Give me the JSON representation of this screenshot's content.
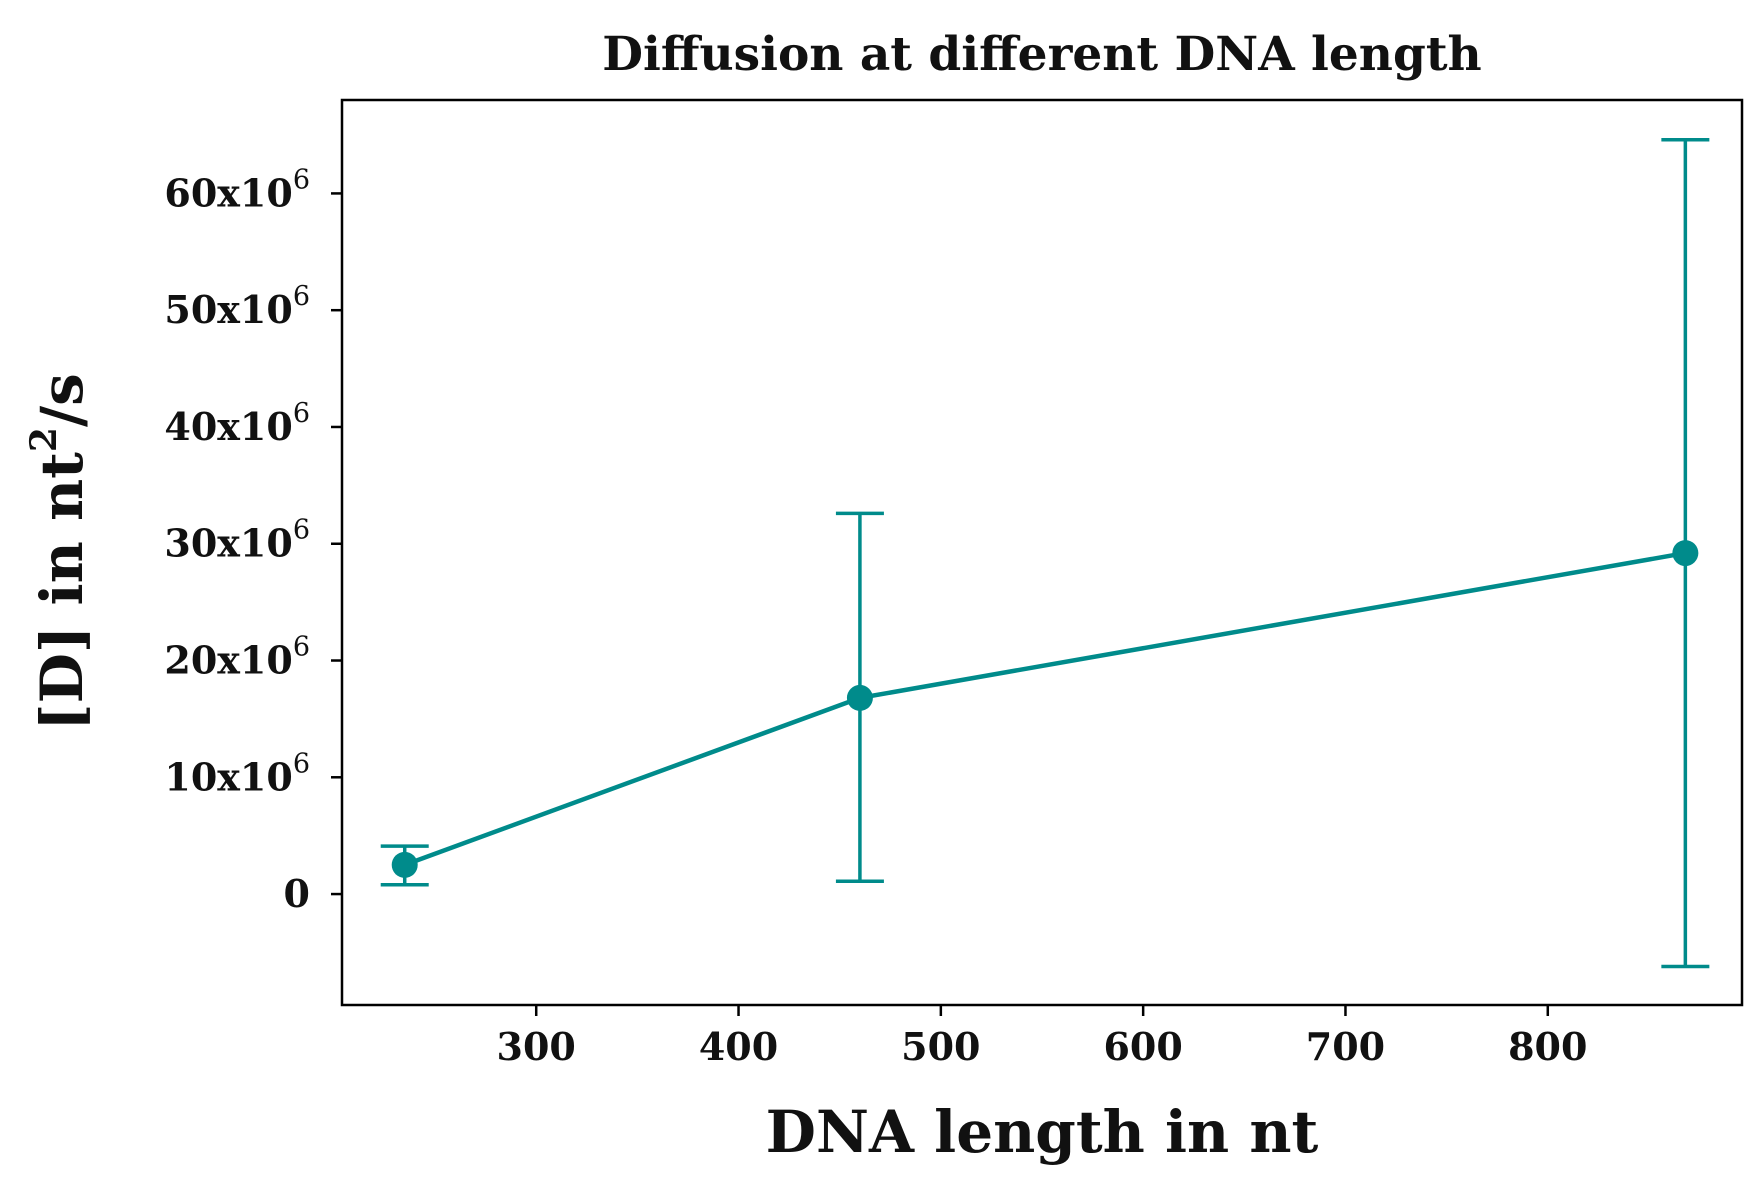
{
  "chart_data": {
    "type": "line",
    "title": "Diffusion at different DNA length",
    "xlabel": "DNA length in nt",
    "ylabel": "[D] in nt²/s",
    "ylabel_parts": {
      "main": "[D] in nt",
      "sup": "2",
      "tail": "/s"
    },
    "x_ticks": [
      300,
      400,
      500,
      600,
      700,
      800
    ],
    "y_ticks": [
      {
        "value": 0,
        "mantissa": "0",
        "exp": ""
      },
      {
        "value": 10000000,
        "mantissa": "10x10",
        "exp": "6"
      },
      {
        "value": 20000000,
        "mantissa": "20x10",
        "exp": "6"
      },
      {
        "value": 30000000,
        "mantissa": "30x10",
        "exp": "6"
      },
      {
        "value": 40000000,
        "mantissa": "40x10",
        "exp": "6"
      },
      {
        "value": 50000000,
        "mantissa": "50x10",
        "exp": "6"
      },
      {
        "value": 60000000,
        "mantissa": "60x10",
        "exp": "6"
      }
    ],
    "xlim": [
      204,
      896
    ],
    "ylim": [
      -9500000,
      68000000
    ],
    "grid": false,
    "series": [
      {
        "color": "#008b8b",
        "points": [
          {
            "x": 235,
            "y": 2500000,
            "err_low": 800000,
            "err_high": 4100000
          },
          {
            "x": 460,
            "y": 16800000,
            "err_low": 1100000,
            "err_high": 32600000
          },
          {
            "x": 868,
            "y": 29200000,
            "err_low": -6200000,
            "err_high": 64600000
          }
        ]
      }
    ]
  }
}
